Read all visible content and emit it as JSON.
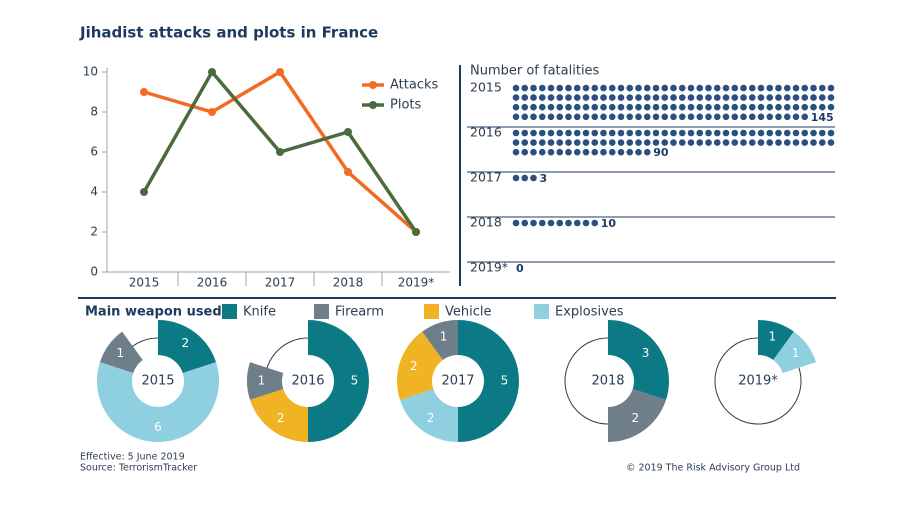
{
  "chart_data": [
    {
      "type": "line",
      "title": "Jihadist attacks and plots in France",
      "categories": [
        "2015",
        "2016",
        "2017",
        "2018",
        "2019*"
      ],
      "series": [
        {
          "name": "Attacks",
          "color": "#f26b21",
          "values": [
            9,
            8,
            10,
            5,
            2
          ]
        },
        {
          "name": "Plots",
          "color": "#4b6b3f",
          "values": [
            4,
            10,
            6,
            7,
            2
          ]
        }
      ],
      "ylim": [
        0,
        10
      ],
      "yticks": [
        0,
        2,
        4,
        6,
        8,
        10
      ],
      "grid": false,
      "legend": "top-right"
    },
    {
      "type": "dots",
      "title": "Number of fatalities",
      "categories": [
        "2015",
        "2016",
        "2017",
        "2018",
        "2019*"
      ],
      "values": [
        145,
        90,
        3,
        10,
        0
      ],
      "color": "#2b4f7e"
    },
    {
      "type": "donut",
      "title": "Main weapon used",
      "categories": [
        "Knife",
        "Firearm",
        "Vehicle",
        "Explosives"
      ],
      "colors": [
        "#0b7a85",
        "#6f7f8a",
        "#f0b323",
        "#8ecfe0"
      ],
      "rlim": [
        0,
        10
      ],
      "series": [
        {
          "name": "2015",
          "values": [
            2,
            1,
            null,
            6
          ]
        },
        {
          "name": "2016",
          "values": [
            5,
            1,
            2,
            null
          ]
        },
        {
          "name": "2017",
          "values": [
            5,
            1,
            2,
            2
          ]
        },
        {
          "name": "2018",
          "values": [
            3,
            2,
            null,
            null
          ]
        },
        {
          "name": "2019*",
          "values": [
            1,
            null,
            null,
            1
          ]
        }
      ]
    }
  ],
  "footer": {
    "effective": "Effective: 5 June 2019",
    "source": "Source: TerrorismTracker",
    "copyright": "© 2019 The Risk Advisory Group Ltd"
  }
}
